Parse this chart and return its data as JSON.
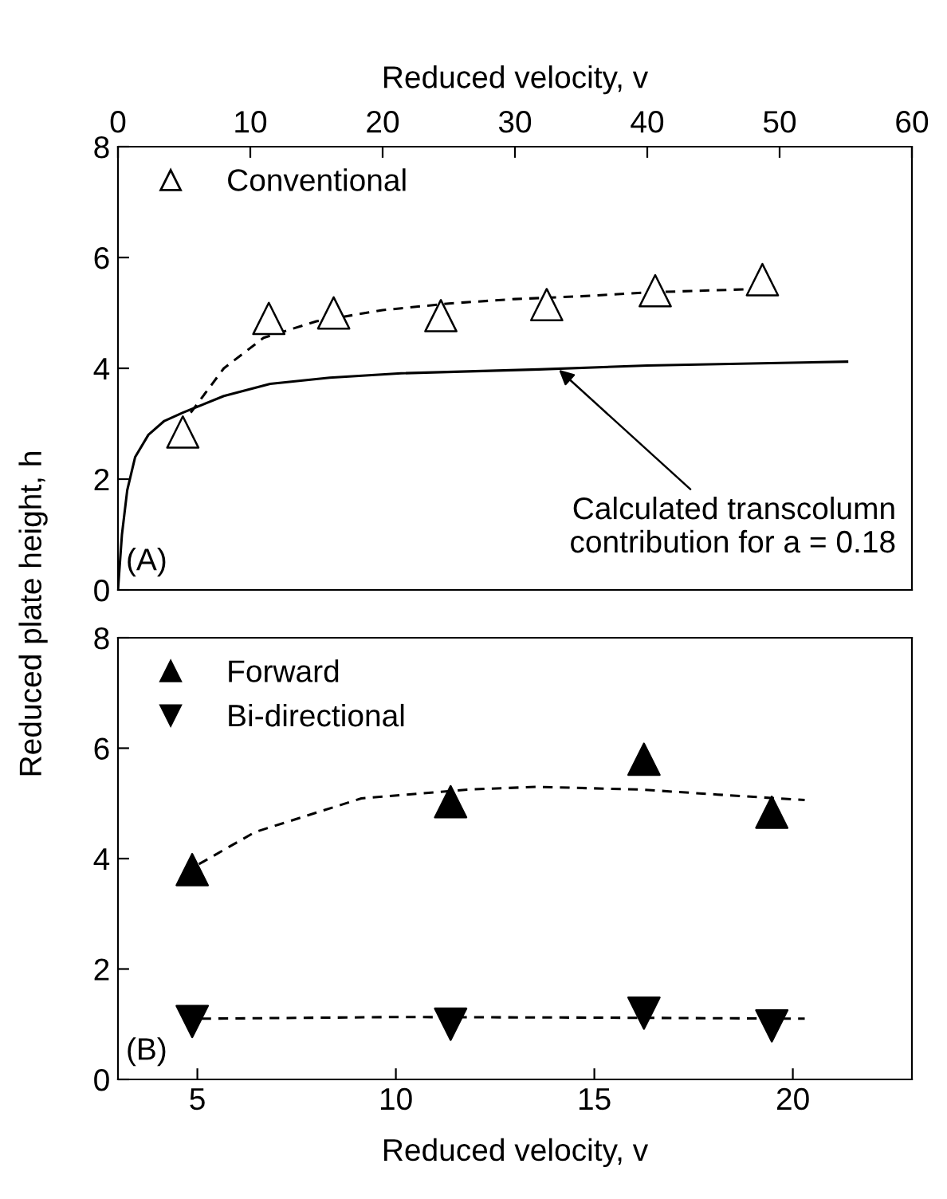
{
  "chart_data": [
    {
      "type": "scatter",
      "xlabel": "Reduced velocity, v",
      "ylabel": "Reduced plate height, h",
      "xlim": [
        0,
        60
      ],
      "xticks": [
        0,
        10,
        20,
        30,
        40,
        50,
        60
      ],
      "ylim": [
        0,
        8
      ],
      "yticks": [
        0,
        2,
        4,
        6,
        8
      ],
      "legend": "top left",
      "grid": false,
      "series": [
        {
          "name": "Conventional",
          "marker": "triangle",
          "color": "#ffffff",
          "x": [
            4.9,
            11.4,
            16.3,
            24.4,
            32.4,
            40.6,
            48.7
          ],
          "values": [
            2.85,
            4.9,
            5.0,
            4.95,
            5.15,
            5.4,
            5.6
          ]
        },
        {
          "type": "line",
          "line_style": "dashed",
          "color": "#000000",
          "x": [
            5.5,
            8,
            11,
            15,
            20,
            25,
            30,
            35,
            40,
            48
          ],
          "values": [
            3.2,
            4.0,
            4.55,
            4.85,
            5.05,
            5.17,
            5.25,
            5.3,
            5.37,
            5.43
          ]
        },
        {
          "type": "line",
          "line_style": "solid",
          "color": "#000000",
          "x": [
            0,
            0.3,
            0.7,
            1.3,
            2.3,
            3.5,
            4.9,
            8,
            11.5,
            16,
            21.4,
            31.8,
            40,
            55.1
          ],
          "values": [
            0,
            1.0,
            1.8,
            2.4,
            2.8,
            3.05,
            3.2,
            3.5,
            3.72,
            3.83,
            3.91,
            3.98,
            4.05,
            4.12
          ]
        }
      ],
      "annotations": [
        {
          "text": "Calculated transcolumn\ncontribution for a = 0.18",
          "x": 33.2,
          "y": 4.0
        },
        "(A)"
      ]
    },
    {
      "type": "scatter",
      "xlabel": "Reduced velocity, v",
      "xlim": [
        3,
        23
      ],
      "xticks": [
        5,
        10,
        15,
        20
      ],
      "ylim": [
        0,
        8
      ],
      "yticks": [
        0,
        2,
        4,
        6,
        8
      ],
      "legend": "top left",
      "grid": false,
      "series": [
        {
          "name": "Forward",
          "marker": "triangle",
          "color": "#000000",
          "x": [
            4.87,
            11.38,
            16.25,
            19.47
          ],
          "values": [
            3.8,
            5.03,
            5.8,
            4.84
          ]
        },
        {
          "name": "Bi-directional",
          "marker": "triangle_down",
          "color": "#000000",
          "x": [
            4.87,
            11.38,
            16.25,
            19.47
          ],
          "values": [
            1.05,
            1.0,
            1.2,
            0.97
          ]
        },
        {
          "type": "line",
          "line_style": "dashed",
          "color": "#000000",
          "x": [
            5.04,
            6.45,
            9.13,
            11.8,
            13.55,
            16.2,
            18.1,
            20.3
          ],
          "values": [
            3.9,
            4.48,
            5.09,
            5.25,
            5.3,
            5.25,
            5.16,
            5.06
          ]
        },
        {
          "type": "line",
          "line_style": "dashed",
          "color": "#000000",
          "x": [
            5.1,
            10,
            15,
            20.3
          ],
          "values": [
            1.1,
            1.13,
            1.12,
            1.1
          ]
        }
      ],
      "annotations": [
        "(B)"
      ]
    }
  ]
}
